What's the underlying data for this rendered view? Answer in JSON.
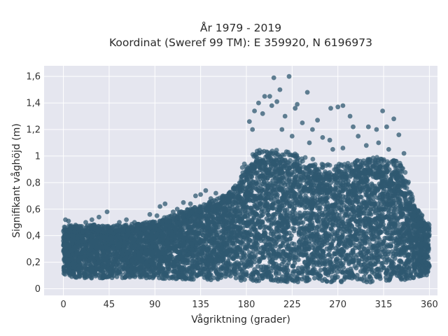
{
  "chart_data": {
    "type": "scatter",
    "title": "År 1979 - 2019",
    "subtitle": "Koordinat (Sweref 99 TM): E 359920, N 6196973",
    "xlabel": "Vågriktning (grader)",
    "ylabel": "Signifikant våghöjd (m)",
    "xlim": [
      -19,
      368
    ],
    "ylim": [
      -0.05,
      1.68
    ],
    "x_ticks": [
      0,
      45,
      90,
      135,
      180,
      225,
      270,
      315,
      360
    ],
    "y_ticks": [
      0,
      0.2,
      0.4,
      0.6,
      0.8,
      1.0,
      1.2,
      1.4,
      1.6
    ],
    "x_tick_labels": [
      "0",
      "45",
      "90",
      "135",
      "180",
      "225",
      "270",
      "315",
      "360"
    ],
    "y_tick_labels": [
      "0",
      "0,2",
      "0,4",
      "0,6",
      "0,8",
      "1",
      "1,2",
      "1,4",
      "1,6"
    ],
    "grid": true,
    "background": "#e5e6ef",
    "marker_color": "#2f5870",
    "envelope": {
      "x": [
        0,
        15,
        30,
        45,
        60,
        75,
        90,
        105,
        120,
        135,
        150,
        165,
        175,
        180,
        190,
        200,
        210,
        220,
        230,
        240,
        250,
        260,
        270,
        280,
        290,
        300,
        310,
        315,
        320,
        330,
        335,
        340,
        345,
        350,
        355,
        360
      ],
      "y_upper": [
        0.45,
        0.44,
        0.45,
        0.44,
        0.45,
        0.46,
        0.48,
        0.52,
        0.56,
        0.6,
        0.64,
        0.7,
        0.82,
        0.9,
        0.96,
        0.98,
        0.99,
        0.96,
        0.94,
        0.92,
        0.88,
        0.86,
        0.86,
        0.88,
        0.9,
        0.9,
        0.92,
        0.92,
        0.9,
        0.88,
        0.82,
        0.75,
        0.62,
        0.55,
        0.5,
        0.45
      ],
      "y_lower": [
        0.1,
        0.08,
        0.08,
        0.08,
        0.08,
        0.08,
        0.08,
        0.07,
        0.07,
        0.07,
        0.06,
        0.06,
        0.06,
        0.05,
        0.05,
        0.05,
        0.05,
        0.05,
        0.05,
        0.05,
        0.05,
        0.05,
        0.05,
        0.05,
        0.05,
        0.05,
        0.05,
        0.05,
        0.05,
        0.06,
        0.06,
        0.07,
        0.08,
        0.09,
        0.1,
        0.1
      ]
    },
    "outliers": [
      {
        "x": 207,
        "y": 1.59
      },
      {
        "x": 222,
        "y": 1.6
      },
      {
        "x": 213,
        "y": 1.5
      },
      {
        "x": 198,
        "y": 1.45
      },
      {
        "x": 203,
        "y": 1.45
      },
      {
        "x": 240,
        "y": 1.48
      },
      {
        "x": 192,
        "y": 1.4
      },
      {
        "x": 210,
        "y": 1.41
      },
      {
        "x": 230,
        "y": 1.39
      },
      {
        "x": 270,
        "y": 1.37
      },
      {
        "x": 275,
        "y": 1.38
      },
      {
        "x": 263,
        "y": 1.36
      },
      {
        "x": 228,
        "y": 1.36
      },
      {
        "x": 205,
        "y": 1.38
      },
      {
        "x": 314,
        "y": 1.34
      },
      {
        "x": 282,
        "y": 1.3
      },
      {
        "x": 325,
        "y": 1.28
      },
      {
        "x": 188,
        "y": 1.34
      },
      {
        "x": 183,
        "y": 1.26
      },
      {
        "x": 196,
        "y": 1.32
      },
      {
        "x": 218,
        "y": 1.3
      },
      {
        "x": 235,
        "y": 1.25
      },
      {
        "x": 250,
        "y": 1.27
      },
      {
        "x": 285,
        "y": 1.22
      },
      {
        "x": 300,
        "y": 1.22
      },
      {
        "x": 308,
        "y": 1.2
      },
      {
        "x": 318,
        "y": 1.22
      },
      {
        "x": 245,
        "y": 1.2
      },
      {
        "x": 255,
        "y": 1.14
      },
      {
        "x": 262,
        "y": 1.12
      },
      {
        "x": 290,
        "y": 1.15
      },
      {
        "x": 330,
        "y": 1.16
      },
      {
        "x": 298,
        "y": 1.08
      },
      {
        "x": 320,
        "y": 1.05
      },
      {
        "x": 335,
        "y": 1.02
      },
      {
        "x": 215,
        "y": 1.2
      },
      {
        "x": 225,
        "y": 1.15
      },
      {
        "x": 186,
        "y": 1.2
      },
      {
        "x": 265,
        "y": 1.05
      },
      {
        "x": 275,
        "y": 1.06
      },
      {
        "x": 310,
        "y": 1.1
      },
      {
        "x": 242,
        "y": 1.1
      },
      {
        "x": 12,
        "y": 0.48
      },
      {
        "x": 22,
        "y": 0.5
      },
      {
        "x": 28,
        "y": 0.52
      },
      {
        "x": 35,
        "y": 0.54
      },
      {
        "x": 43,
        "y": 0.58
      },
      {
        "x": 55,
        "y": 0.5
      },
      {
        "x": 62,
        "y": 0.52
      },
      {
        "x": 70,
        "y": 0.5
      },
      {
        "x": 78,
        "y": 0.49
      },
      {
        "x": 85,
        "y": 0.56
      },
      {
        "x": 92,
        "y": 0.55
      },
      {
        "x": 100,
        "y": 0.64
      },
      {
        "x": 108,
        "y": 0.58
      },
      {
        "x": 112,
        "y": 0.6
      },
      {
        "x": 118,
        "y": 0.65
      },
      {
        "x": 125,
        "y": 0.64
      },
      {
        "x": 130,
        "y": 0.7
      },
      {
        "x": 135,
        "y": 0.71
      },
      {
        "x": 140,
        "y": 0.74
      },
      {
        "x": 145,
        "y": 0.68
      },
      {
        "x": 150,
        "y": 0.72
      },
      {
        "x": 157,
        "y": 0.7
      },
      {
        "x": 163,
        "y": 0.72
      },
      {
        "x": 168,
        "y": 0.75
      },
      {
        "x": 2,
        "y": 0.52
      },
      {
        "x": 5,
        "y": 0.51
      },
      {
        "x": 95,
        "y": 0.62
      },
      {
        "x": 340,
        "y": 0.62
      },
      {
        "x": 345,
        "y": 0.55
      },
      {
        "x": 348,
        "y": 0.52
      },
      {
        "x": 352,
        "y": 0.5
      },
      {
        "x": 356,
        "y": 0.48
      }
    ]
  }
}
